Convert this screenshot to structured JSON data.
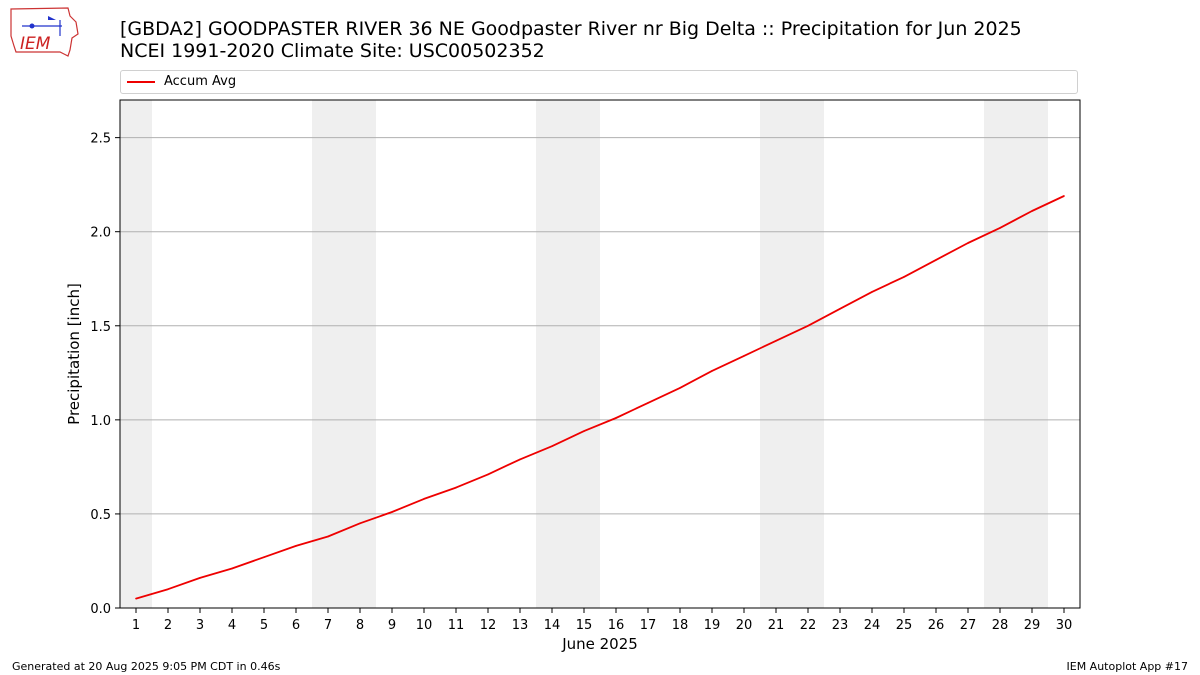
{
  "header": {
    "title_line1": "[GBDA2] GOODPASTER RIVER 36 NE Goodpaster River nr Big Delta :: Precipitation for Jun 2025",
    "title_line2": "NCEI 1991-2020 Climate Site: USC00502352"
  },
  "logo": {
    "text": "IEM"
  },
  "footer": {
    "generated": "Generated at 20 Aug 2025 9:05 PM CDT in 0.46s",
    "app": "IEM Autoplot App #17"
  },
  "colors": {
    "line": "#ee0000",
    "weekend": "#efefef",
    "grid": "#b0b0b0"
  },
  "chart_data": {
    "type": "line",
    "xlabel": "June 2025",
    "ylabel": "Precipitation [inch]",
    "xlim": [
      0.5,
      30.5
    ],
    "ylim": [
      0,
      2.7
    ],
    "yticks": [
      0.0,
      0.5,
      1.0,
      1.5,
      2.0,
      2.5
    ],
    "ytick_labels": [
      "0.0",
      "0.5",
      "1.0",
      "1.5",
      "2.0",
      "2.5"
    ],
    "grid": "horizontal",
    "legend": "top",
    "weekend_days": [
      1,
      7,
      8,
      14,
      15,
      21,
      22,
      28,
      29
    ],
    "x": [
      1,
      2,
      3,
      4,
      5,
      6,
      7,
      8,
      9,
      10,
      11,
      12,
      13,
      14,
      15,
      16,
      17,
      18,
      19,
      20,
      21,
      22,
      23,
      24,
      25,
      26,
      27,
      28,
      29,
      30
    ],
    "series": [
      {
        "name": "Accum Avg",
        "values": [
          0.05,
          0.1,
          0.16,
          0.21,
          0.27,
          0.33,
          0.38,
          0.45,
          0.51,
          0.58,
          0.64,
          0.71,
          0.79,
          0.86,
          0.94,
          1.01,
          1.09,
          1.17,
          1.26,
          1.34,
          1.42,
          1.5,
          1.59,
          1.68,
          1.76,
          1.85,
          1.94,
          2.02,
          2.11,
          2.19
        ]
      }
    ]
  }
}
